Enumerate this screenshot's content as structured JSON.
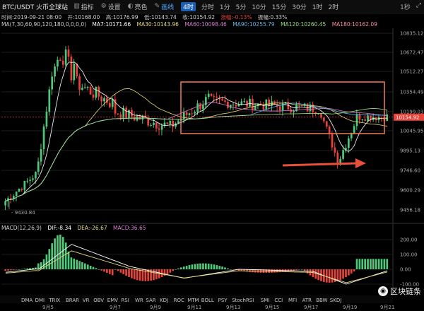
{
  "toolbar": {
    "pair": "BTC/USDT 火币全球站",
    "tools": [
      {
        "name": "indicators",
        "label": "指标",
        "icon": "bar-chart-icon"
      },
      {
        "name": "settings",
        "label": "设置",
        "icon": "gear-icon"
      },
      {
        "name": "theme",
        "label": "亮色",
        "icon": "palette-icon"
      },
      {
        "name": "drawing",
        "label": "画线",
        "icon": "pencil-icon",
        "active": true
      }
    ],
    "intervals": [
      "4时",
      "分时",
      "1分",
      "5分",
      "10分",
      "15分",
      "30分",
      "1时",
      "2时"
    ],
    "active_interval": "4时",
    "right_items": [
      "1秒"
    ]
  },
  "info": {
    "time": "时间:2019-09-21 08:00",
    "open": "开:10168.00",
    "high": "高:10176.99",
    "low": "低:10143.74",
    "close": "收:10154.92",
    "change": "涨幅:-0.13%",
    "amplitude": "振幅:0.33%"
  },
  "ma": {
    "label": "MA(7,30,60,90,120,180,0,0,0,0)",
    "items": [
      {
        "text": "MA7:10171.66",
        "color": "#ffffff"
      },
      {
        "text": "MA30:10143.96",
        "color": "#e6d97a"
      },
      {
        "text": "MA60:10098.46",
        "color": "#d67bd0"
      },
      {
        "text": "MA90:10255.79",
        "color": "#5fb4e8"
      },
      {
        "text": "MA120:10260.45",
        "color": "#9be07a"
      },
      {
        "text": "MA180:10162.09",
        "color": "#ff8ea0"
      }
    ]
  },
  "macd": {
    "label": "MACD(12,26,9)",
    "dif": "DIF:-8.34",
    "dea": "DEA:-26.67",
    "value": "MACD:36.65"
  },
  "price_axis": [
    "10835.12",
    "10672.47",
    "10512.27",
    "10354.49",
    "10199.03",
    "10045.95",
    "9895.13",
    "9746.60",
    "9600.29",
    "9456.18"
  ],
  "current_price": "10154.92",
  "low_marker": "9430.84",
  "macd_axis": [
    "200.00",
    "100.00",
    "0.00",
    "-100.00"
  ],
  "date_labels": [
    "9月5",
    "9月7",
    "9月9",
    "9月11",
    "9月13",
    "9月15",
    "9月17",
    "9月19",
    "9月21"
  ],
  "indicator_tabs": [
    "MA",
    "BOLL",
    "SAR",
    "RSI",
    "KDJ",
    "ROC",
    "MTM",
    "BOLL",
    "PSY",
    "StochRSI",
    "SMI",
    "CCI",
    "MFI",
    "ATR",
    "BBW",
    "SKDJ",
    "WR",
    "OBV",
    "EMV",
    "TRIX",
    "BRAR",
    "DMA",
    "DMI",
    "ARBR",
    "VR",
    "CR"
  ],
  "watermark": "区块链条",
  "colors": {
    "up": "#4fc87a",
    "down": "#e8433a",
    "highlight": "#f07a5a",
    "arrow": "#e8503a"
  }
}
